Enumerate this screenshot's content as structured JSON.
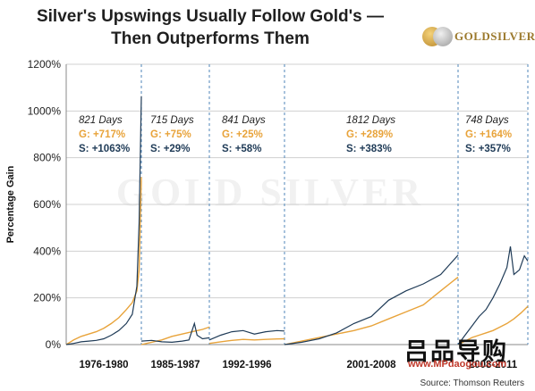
{
  "header": {
    "title_line1": "Silver's Upswings Usually Follow Gold's —",
    "title_line2": "Then Outperforms Them",
    "logo_text": "GOLDSILVER"
  },
  "watermark_text": "GOLD SILVER",
  "overlay_watermark": {
    "chinese_text": "吕品导购",
    "url": "www.MPdaogou.com"
  },
  "source": "Source: Thomson Reuters",
  "colors": {
    "gold": "#e8a33a",
    "silver": "#1f3b57",
    "divider": "#4f86b8",
    "grid": "#d0d0d0",
    "gold_text": "#e8a33a",
    "silver_text": "#1f3b57"
  },
  "chart_data": {
    "type": "line",
    "title": "Silver's Upswings Usually Follow Gold's — Then Outperforms Them",
    "xlabel": "",
    "ylabel": "Percentage Gain",
    "ylim": [
      0,
      1200
    ],
    "y_ticks": [
      0,
      200,
      400,
      600,
      800,
      1000,
      1200
    ],
    "y_tick_labels": [
      "0%",
      "200%",
      "400%",
      "600%",
      "800%",
      "1000%",
      "1200%"
    ],
    "grid": "horizontal",
    "periods": [
      {
        "label": "1976-1980",
        "days": "821 Days",
        "gold_label": "G: +717%",
        "silver_label": "S: +1063%",
        "gold": [
          [
            0,
            0
          ],
          [
            0.1,
            20
          ],
          [
            0.2,
            35
          ],
          [
            0.3,
            45
          ],
          [
            0.4,
            55
          ],
          [
            0.5,
            70
          ],
          [
            0.6,
            90
          ],
          [
            0.7,
            115
          ],
          [
            0.8,
            150
          ],
          [
            0.88,
            180
          ],
          [
            0.94,
            230
          ],
          [
            0.97,
            320
          ],
          [
            1.0,
            717
          ]
        ],
        "silver": [
          [
            0,
            0
          ],
          [
            0.1,
            5
          ],
          [
            0.2,
            12
          ],
          [
            0.3,
            15
          ],
          [
            0.4,
            18
          ],
          [
            0.5,
            25
          ],
          [
            0.6,
            40
          ],
          [
            0.7,
            60
          ],
          [
            0.8,
            90
          ],
          [
            0.88,
            130
          ],
          [
            0.94,
            250
          ],
          [
            0.97,
            520
          ],
          [
            1.0,
            1063
          ]
        ]
      },
      {
        "label": "1985-1987",
        "days": "715 Days",
        "gold_label": "G: +75%",
        "silver_label": "S: +29%",
        "gold": [
          [
            0,
            0
          ],
          [
            0.15,
            10
          ],
          [
            0.3,
            20
          ],
          [
            0.45,
            35
          ],
          [
            0.6,
            45
          ],
          [
            0.75,
            55
          ],
          [
            0.9,
            65
          ],
          [
            1.0,
            75
          ]
        ],
        "silver": [
          [
            0,
            15
          ],
          [
            0.15,
            18
          ],
          [
            0.3,
            12
          ],
          [
            0.45,
            10
          ],
          [
            0.6,
            15
          ],
          [
            0.7,
            20
          ],
          [
            0.78,
            90
          ],
          [
            0.82,
            40
          ],
          [
            0.9,
            25
          ],
          [
            1.0,
            29
          ]
        ]
      },
      {
        "label": "1992-1996",
        "days": "841 Days",
        "gold_label": "G: +25%",
        "silver_label": "S: +58%",
        "gold": [
          [
            0,
            5
          ],
          [
            0.15,
            12
          ],
          [
            0.3,
            18
          ],
          [
            0.45,
            22
          ],
          [
            0.6,
            20
          ],
          [
            0.75,
            22
          ],
          [
            0.9,
            24
          ],
          [
            1.0,
            25
          ]
        ],
        "silver": [
          [
            0,
            20
          ],
          [
            0.15,
            40
          ],
          [
            0.3,
            55
          ],
          [
            0.45,
            60
          ],
          [
            0.6,
            45
          ],
          [
            0.75,
            55
          ],
          [
            0.9,
            60
          ],
          [
            1.0,
            58
          ]
        ]
      },
      {
        "label": "2001-2008",
        "days": "1812 Days",
        "gold_label": "G: +289%",
        "silver_label": "S: +383%",
        "gold": [
          [
            0,
            0
          ],
          [
            0.1,
            15
          ],
          [
            0.2,
            30
          ],
          [
            0.3,
            45
          ],
          [
            0.4,
            60
          ],
          [
            0.5,
            80
          ],
          [
            0.6,
            110
          ],
          [
            0.7,
            140
          ],
          [
            0.8,
            170
          ],
          [
            0.9,
            230
          ],
          [
            1.0,
            289
          ]
        ],
        "silver": [
          [
            0,
            0
          ],
          [
            0.1,
            10
          ],
          [
            0.2,
            25
          ],
          [
            0.3,
            50
          ],
          [
            0.4,
            90
          ],
          [
            0.5,
            120
          ],
          [
            0.6,
            190
          ],
          [
            0.7,
            230
          ],
          [
            0.8,
            260
          ],
          [
            0.9,
            300
          ],
          [
            1.0,
            383
          ]
        ]
      },
      {
        "label": "2008-2011",
        "days": "748 Days",
        "gold_label": "G: +164%",
        "silver_label": "S: +357%",
        "gold": [
          [
            0,
            0
          ],
          [
            0.1,
            15
          ],
          [
            0.2,
            30
          ],
          [
            0.3,
            40
          ],
          [
            0.4,
            50
          ],
          [
            0.5,
            60
          ],
          [
            0.6,
            75
          ],
          [
            0.7,
            90
          ],
          [
            0.8,
            110
          ],
          [
            0.9,
            135
          ],
          [
            1.0,
            164
          ]
        ],
        "silver": [
          [
            0,
            0
          ],
          [
            0.1,
            40
          ],
          [
            0.2,
            80
          ],
          [
            0.3,
            120
          ],
          [
            0.4,
            150
          ],
          [
            0.5,
            200
          ],
          [
            0.6,
            260
          ],
          [
            0.7,
            330
          ],
          [
            0.75,
            420
          ],
          [
            0.8,
            300
          ],
          [
            0.88,
            320
          ],
          [
            0.95,
            380
          ],
          [
            1.0,
            357
          ]
        ]
      }
    ]
  }
}
